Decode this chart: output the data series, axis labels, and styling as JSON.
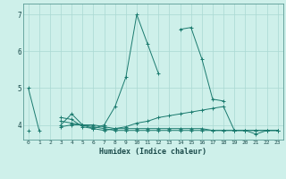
{
  "xlabel": "Humidex (Indice chaleur)",
  "x": [
    0,
    1,
    2,
    3,
    4,
    5,
    6,
    7,
    8,
    9,
    10,
    11,
    12,
    13,
    14,
    15,
    16,
    17,
    18,
    19,
    20,
    21,
    22,
    23
  ],
  "line1": [
    5.0,
    3.85,
    null,
    4.0,
    4.3,
    4.0,
    3.9,
    4.0,
    4.5,
    5.3,
    7.0,
    6.2,
    5.4,
    null,
    6.6,
    6.65,
    5.8,
    4.7,
    4.65,
    null,
    null,
    null,
    null,
    null
  ],
  "line2": [
    null,
    null,
    null,
    4.2,
    4.15,
    3.95,
    3.9,
    3.85,
    3.9,
    3.95,
    4.05,
    4.1,
    4.2,
    4.25,
    4.3,
    4.35,
    4.4,
    4.45,
    4.5,
    3.85,
    3.85,
    3.75,
    3.85,
    3.85
  ],
  "line3": [
    3.85,
    null,
    null,
    3.95,
    4.0,
    4.0,
    4.0,
    3.95,
    3.9,
    3.9,
    3.9,
    3.9,
    3.9,
    3.9,
    3.9,
    3.9,
    3.9,
    3.85,
    3.85,
    3.85,
    3.85,
    3.85,
    3.85,
    3.85
  ],
  "line4": [
    null,
    null,
    null,
    4.1,
    4.05,
    4.0,
    3.95,
    3.9,
    3.85,
    3.85,
    3.85,
    3.85,
    3.85,
    3.85,
    3.85,
    3.85,
    3.85,
    3.85,
    3.85,
    3.85,
    3.85,
    3.85,
    3.85,
    3.85
  ],
  "color": "#1a7a6e",
  "bg_color": "#cef0ea",
  "grid_color": "#aad8d2",
  "ylim": [
    3.6,
    7.3
  ],
  "yticks": [
    4,
    5,
    6,
    7
  ],
  "xticks": [
    0,
    1,
    2,
    3,
    4,
    5,
    6,
    7,
    8,
    9,
    10,
    11,
    12,
    13,
    14,
    15,
    16,
    17,
    18,
    19,
    20,
    21,
    22,
    23
  ]
}
